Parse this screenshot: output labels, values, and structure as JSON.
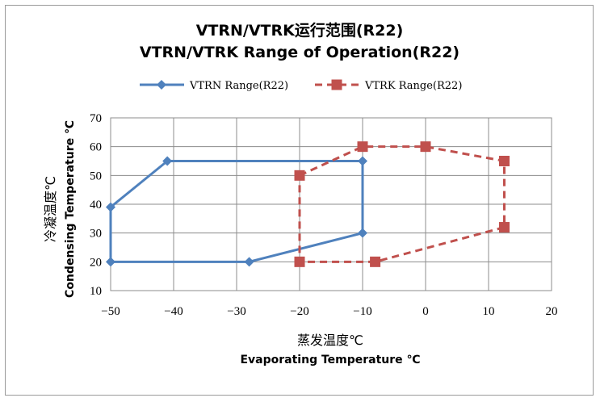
{
  "chart_data": {
    "type": "line",
    "title_cn": "VTRN/VTRK运行范围(R22)",
    "title_en": "VTRN/VTRK Range of Operation(R22)",
    "xlabel_cn": "蒸发温度℃",
    "xlabel_en": "Evaporating Temperature ℃",
    "ylabel_cn": "冷凝温度℃",
    "ylabel_en": "Condensing Temperature ℃",
    "xlim": [
      -50,
      20
    ],
    "ylim": [
      10,
      70
    ],
    "xticks": [
      -50,
      -40,
      -30,
      -20,
      -10,
      0,
      10,
      20
    ],
    "yticks": [
      10,
      20,
      30,
      40,
      50,
      60,
      70
    ],
    "grid": true,
    "legend_position": "top",
    "series": [
      {
        "name": "VTRN Range(R22)",
        "color": "#4f81bd",
        "marker": "diamond",
        "dash": "solid",
        "points": [
          {
            "x": -50,
            "y": 39
          },
          {
            "x": -41,
            "y": 55
          },
          {
            "x": -10,
            "y": 55
          },
          {
            "x": -10,
            "y": 30
          },
          {
            "x": -28,
            "y": 20
          },
          {
            "x": -50,
            "y": 20
          },
          {
            "x": -50,
            "y": 39
          }
        ]
      },
      {
        "name": "VTRK Range(R22)",
        "color": "#c0504d",
        "marker": "square",
        "dash": "dashed",
        "points": [
          {
            "x": -20,
            "y": 50
          },
          {
            "x": -10,
            "y": 60
          },
          {
            "x": 0,
            "y": 60
          },
          {
            "x": 12.5,
            "y": 55
          },
          {
            "x": 12.5,
            "y": 32
          },
          {
            "x": -8,
            "y": 20
          },
          {
            "x": -20,
            "y": 20
          },
          {
            "x": -20,
            "y": 50
          }
        ]
      }
    ]
  }
}
